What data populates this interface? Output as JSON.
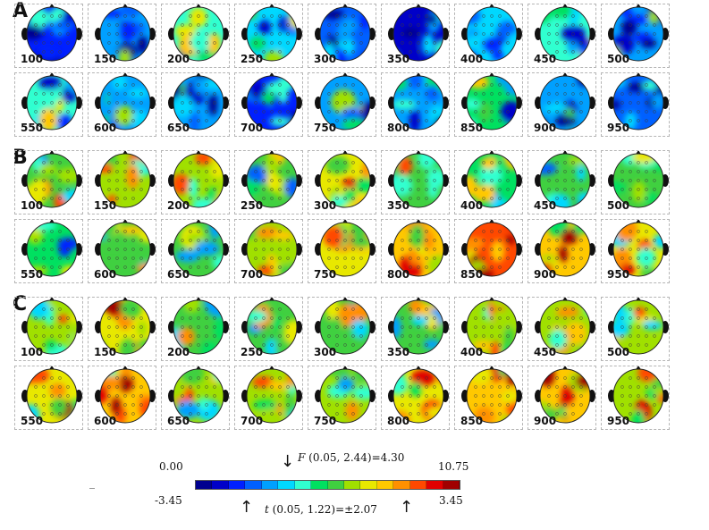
{
  "panels": [
    {
      "label": "A",
      "rows": [
        {
          "times": [
            "100",
            "150",
            "200",
            "250",
            "300",
            "350",
            "400",
            "450",
            "500"
          ],
          "moods": [
            0.15,
            0.3,
            0.4,
            0.35,
            0.2,
            0.1,
            0.35,
            0.4,
            0.3
          ]
        },
        {
          "times": [
            "550",
            "600",
            "650",
            "700",
            "750",
            "800",
            "850",
            "900",
            "950"
          ],
          "moods": [
            0.4,
            0.3,
            0.25,
            0.15,
            0.3,
            0.3,
            0.45,
            0.25,
            0.2
          ]
        }
      ],
      "scheme": "cold"
    },
    {
      "label": "B",
      "rows": [
        {
          "times": [
            "100",
            "150",
            "200",
            "250",
            "300",
            "350",
            "400",
            "450",
            "500"
          ],
          "moods": [
            0.55,
            0.62,
            0.6,
            0.5,
            0.68,
            0.55,
            0.48,
            0.5,
            0.52
          ]
        },
        {
          "times": [
            "550",
            "600",
            "650",
            "700",
            "750",
            "800",
            "850",
            "900",
            "950"
          ],
          "moods": [
            0.45,
            0.52,
            0.5,
            0.62,
            0.65,
            0.7,
            0.82,
            0.72,
            0.64
          ]
        }
      ],
      "scheme": "warm"
    },
    {
      "label": "C",
      "rows": [
        {
          "times": [
            "100",
            "150",
            "200",
            "250",
            "300",
            "350",
            "400",
            "450",
            "500"
          ],
          "moods": [
            0.6,
            0.68,
            0.55,
            0.5,
            0.55,
            0.55,
            0.62,
            0.6,
            0.58
          ]
        },
        {
          "times": [
            "550",
            "600",
            "650",
            "700",
            "750",
            "800",
            "850",
            "900",
            "950"
          ],
          "moods": [
            0.65,
            0.7,
            0.6,
            0.62,
            0.58,
            0.68,
            0.72,
            0.72,
            0.62
          ]
        }
      ],
      "scheme": "mid"
    }
  ],
  "legend": {
    "f_text": "F (0.05, 2.44)=4.30",
    "t_text": "t (0.05, 1.22)=±2.07",
    "f_min": "0.00",
    "f_max": "10.75",
    "t_min": "-3.45",
    "t_max": "3.45",
    "colors": [
      "#00008f",
      "#0000c8",
      "#0020ff",
      "#0060ff",
      "#00a0ff",
      "#00d8ff",
      "#30ffd0",
      "#00e060",
      "#40d040",
      "#a0e000",
      "#e8e800",
      "#ffc800",
      "#ff9000",
      "#ff4800",
      "#e00000",
      "#a00000"
    ]
  }
}
